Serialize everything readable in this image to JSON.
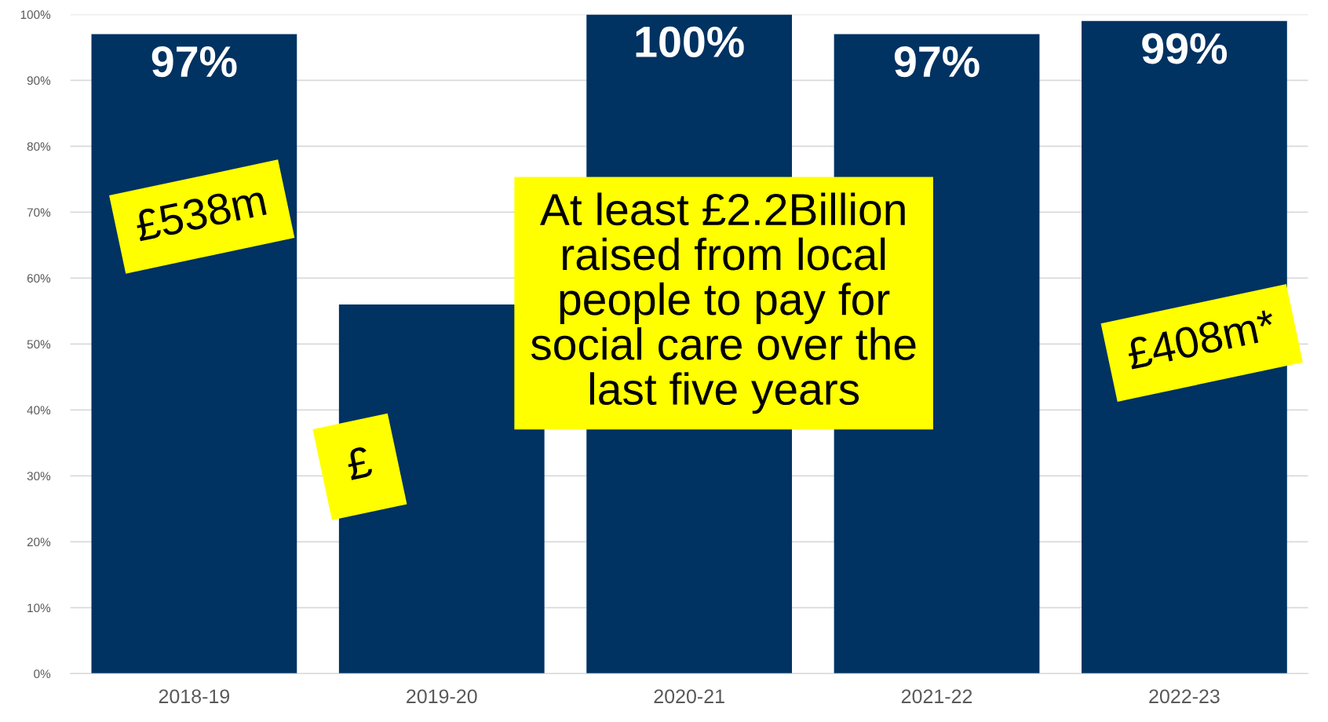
{
  "chart_data": {
    "type": "bar",
    "categories": [
      "2018-19",
      "2019-20",
      "2020-21",
      "2021-22",
      "2022-23"
    ],
    "values": [
      97,
      56,
      100,
      97,
      99
    ],
    "color": "#003262",
    "value_labels": [
      "97%",
      null,
      "100%",
      "97%",
      "99%"
    ],
    "ylim": [
      0,
      100
    ],
    "yticks": [
      {
        "value": 0,
        "label": "0%"
      },
      {
        "value": 10,
        "label": "10%"
      },
      {
        "value": 20,
        "label": "20%"
      },
      {
        "value": 30,
        "label": "30%"
      },
      {
        "value": 40,
        "label": "40%"
      },
      {
        "value": 50,
        "label": "50%"
      },
      {
        "value": 60,
        "label": "60%"
      },
      {
        "value": 70,
        "label": "70%"
      },
      {
        "value": 80,
        "label": "80%"
      },
      {
        "value": 90,
        "label": "90%"
      },
      {
        "value": 100,
        "label": "100%"
      }
    ],
    "grid": "y",
    "annotations": [
      "£538m",
      "£",
      "£408m*",
      "At least £2.2Billion\nraised from local\npeople to pay for\nsocial care over the\nlast five years"
    ]
  }
}
